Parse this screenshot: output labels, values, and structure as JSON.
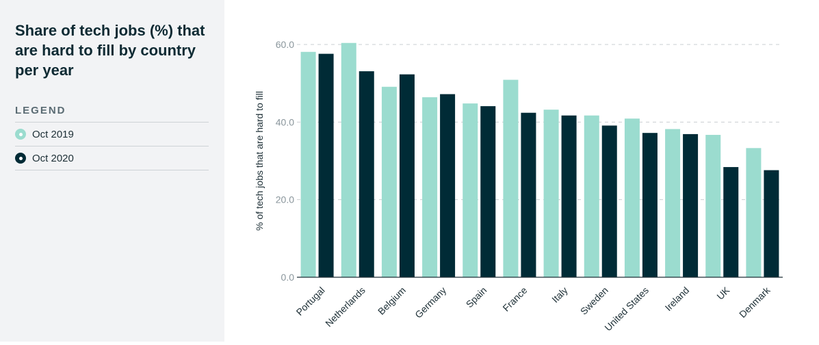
{
  "sidebar": {
    "title": "Share of tech jobs (%) that are hard to fill by country per year",
    "legend_heading": "LEGEND",
    "legend_items": [
      {
        "label": "Oct 2019",
        "color": "#9bdccf"
      },
      {
        "label": "Oct 2020",
        "color": "#002b36"
      }
    ]
  },
  "chart_data": {
    "type": "bar",
    "title": "Share of tech jobs (%) that are hard to fill by country per year",
    "xlabel": "",
    "ylabel": "% of tech jobs that are hard to fill",
    "ylim": [
      0,
      60
    ],
    "yticks": [
      0,
      20,
      40,
      60
    ],
    "ytick_labels": [
      "0.0",
      "20.0",
      "40.0",
      "60.0"
    ],
    "grid": true,
    "categories": [
      "Portugal",
      "Netherlands",
      "Belgium",
      "Germany",
      "Spain",
      "France",
      "Italy",
      "Sweden",
      "United States",
      "Ireland",
      "UK",
      "Denmark"
    ],
    "series": [
      {
        "name": "Oct 2019",
        "color": "#9bdccf",
        "values": [
          58.1,
          60.4,
          49.1,
          46.4,
          44.8,
          50.9,
          43.2,
          41.7,
          40.9,
          38.2,
          36.7,
          33.3
        ]
      },
      {
        "name": "Oct 2020",
        "color": "#002b36",
        "values": [
          57.6,
          53.1,
          52.3,
          47.2,
          44.1,
          42.4,
          41.7,
          39.1,
          37.2,
          36.9,
          28.4,
          27.6
        ]
      }
    ]
  }
}
